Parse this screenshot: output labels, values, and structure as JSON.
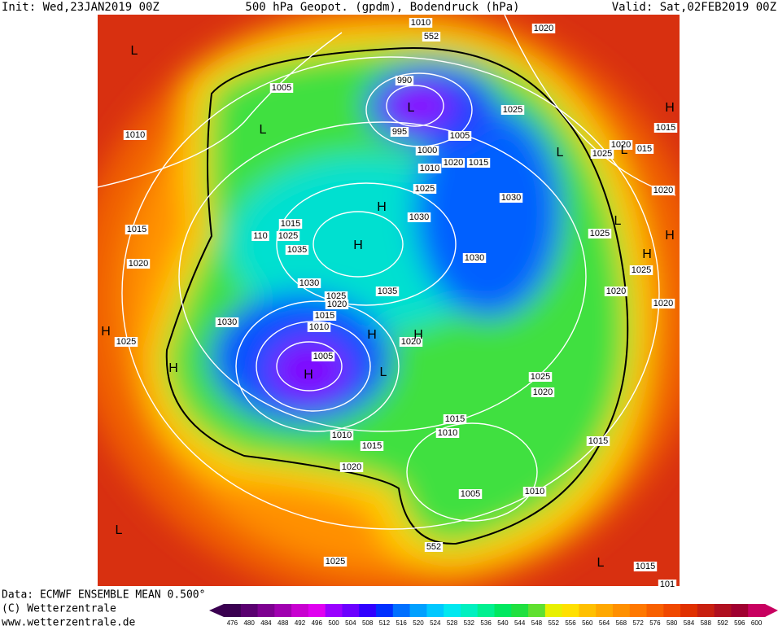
{
  "header": {
    "init": "Init: Wed,23JAN2019 00Z",
    "title": "500 hPa Geopot. (gpdm), Bodendruck (hPa)",
    "valid": "Valid: Sat,02FEB2019 00Z"
  },
  "map": {
    "labels": [
      "1010",
      "552",
      "1020",
      "1005",
      "990",
      "1025",
      "1015",
      "1010",
      "995",
      "1005",
      "1000",
      "1020",
      "1025",
      "015",
      "1010",
      "1020",
      "1015",
      "1025",
      "1030",
      "1020",
      "1030",
      "1015",
      "1015",
      "110",
      "1025",
      "1025",
      "1035",
      "1030",
      "1020",
      "1025",
      "1030",
      "1025",
      "1035",
      "1020",
      "1020",
      "1020",
      "1015",
      "1010",
      "1030",
      "1025",
      "1020",
      "1005",
      "1025",
      "1020",
      "1015",
      "1010",
      "1010",
      "1015",
      "1015",
      "1020",
      "552",
      "1005",
      "1010",
      "1025",
      "1015",
      "101"
    ],
    "centers": [
      "L",
      "L",
      "H",
      "L",
      "L",
      "L",
      "H",
      "L",
      "H",
      "H",
      "H",
      "H",
      "H",
      "H",
      "L",
      "H",
      "H",
      "L",
      "L"
    ]
  },
  "footer": {
    "data": "Data: ECMWF ENSEMBLE MEAN 0.500°",
    "copyright": "(C) Wetterzentrale",
    "url": "www.wetterzentrale.de"
  },
  "scale": {
    "values": [
      476,
      480,
      484,
      488,
      492,
      496,
      500,
      504,
      508,
      512,
      516,
      520,
      524,
      528,
      532,
      536,
      540,
      544,
      548,
      552,
      556,
      560,
      564,
      568,
      572,
      576,
      580,
      584,
      588,
      592,
      596,
      600
    ],
    "colors": [
      "#3a0050",
      "#5a0070",
      "#7d0090",
      "#a000b0",
      "#c800d0",
      "#e000f0",
      "#9a00ff",
      "#6c00ff",
      "#3000ff",
      "#0030ff",
      "#0070ff",
      "#00a0ff",
      "#00c8ff",
      "#00e8f0",
      "#00f0c0",
      "#00f090",
      "#00e860",
      "#20e040",
      "#60e030",
      "#e8f000",
      "#ffe000",
      "#ffc000",
      "#ffa800",
      "#ff9000",
      "#ff7800",
      "#f86000",
      "#f04800",
      "#e03000",
      "#c82010",
      "#b01020",
      "#a00030",
      "#c80060"
    ]
  }
}
